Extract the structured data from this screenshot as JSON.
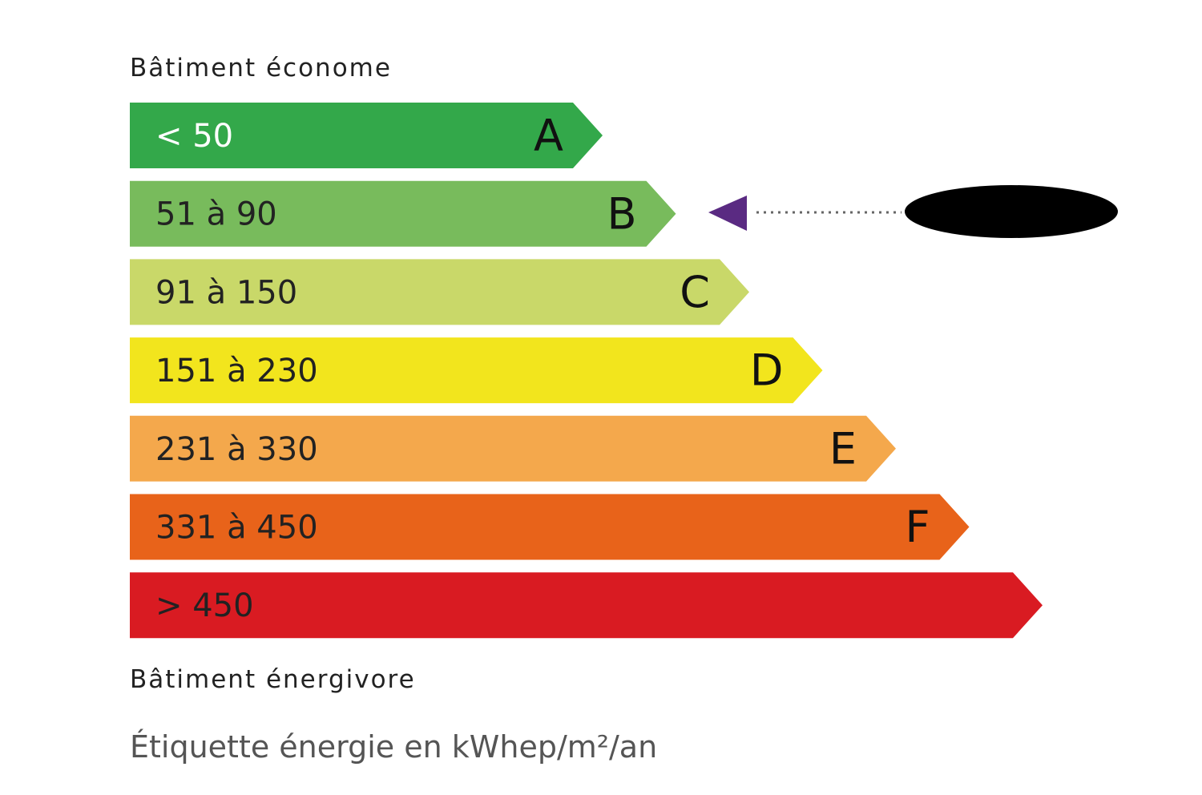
{
  "top_label": "Bâtiment économe",
  "bands": [
    {
      "range": "< 50",
      "letter": "A",
      "color": "#33a84a"
    },
    {
      "range": "51 à 90",
      "letter": "B",
      "color": "#78bb5c"
    },
    {
      "range": "91 à 150",
      "letter": "C",
      "color": "#c9d869"
    },
    {
      "range": "151 à 230",
      "letter": "D",
      "color": "#f2e51d"
    },
    {
      "range": "231 à 330",
      "letter": "E",
      "color": "#f4a84c"
    },
    {
      "range": "331 à 450",
      "letter": "F",
      "color": "#e8631a"
    },
    {
      "range": "> 450",
      "color": "#d91b22"
    }
  ],
  "bottom_label": "Bâtiment énergivore",
  "caption": "Étiquette énergie en kWhep/m²/an"
}
